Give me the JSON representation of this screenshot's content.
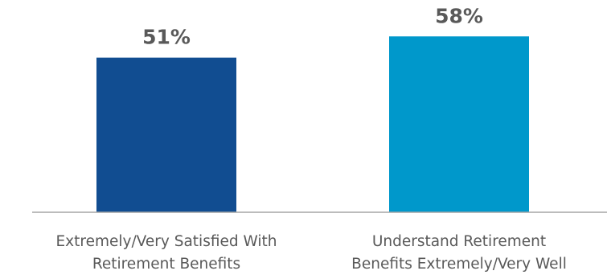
{
  "chart_data": {
    "type": "bar",
    "categories": [
      [
        "Extremely/Very Satisfied With",
        "Retirement Benefits"
      ],
      [
        "Understand Retirement",
        "Benefits Extremely/Very Well"
      ]
    ],
    "values": [
      51,
      58
    ],
    "value_labels": [
      "51%",
      "58%"
    ],
    "colors": [
      "#114d91",
      "#0098cb"
    ],
    "title": "",
    "xlabel": "",
    "ylabel": "",
    "ylim": [
      0,
      70
    ],
    "grid": false,
    "legend": "none"
  },
  "colors": {
    "text": "#595959",
    "axis": "#a6a6a6"
  }
}
